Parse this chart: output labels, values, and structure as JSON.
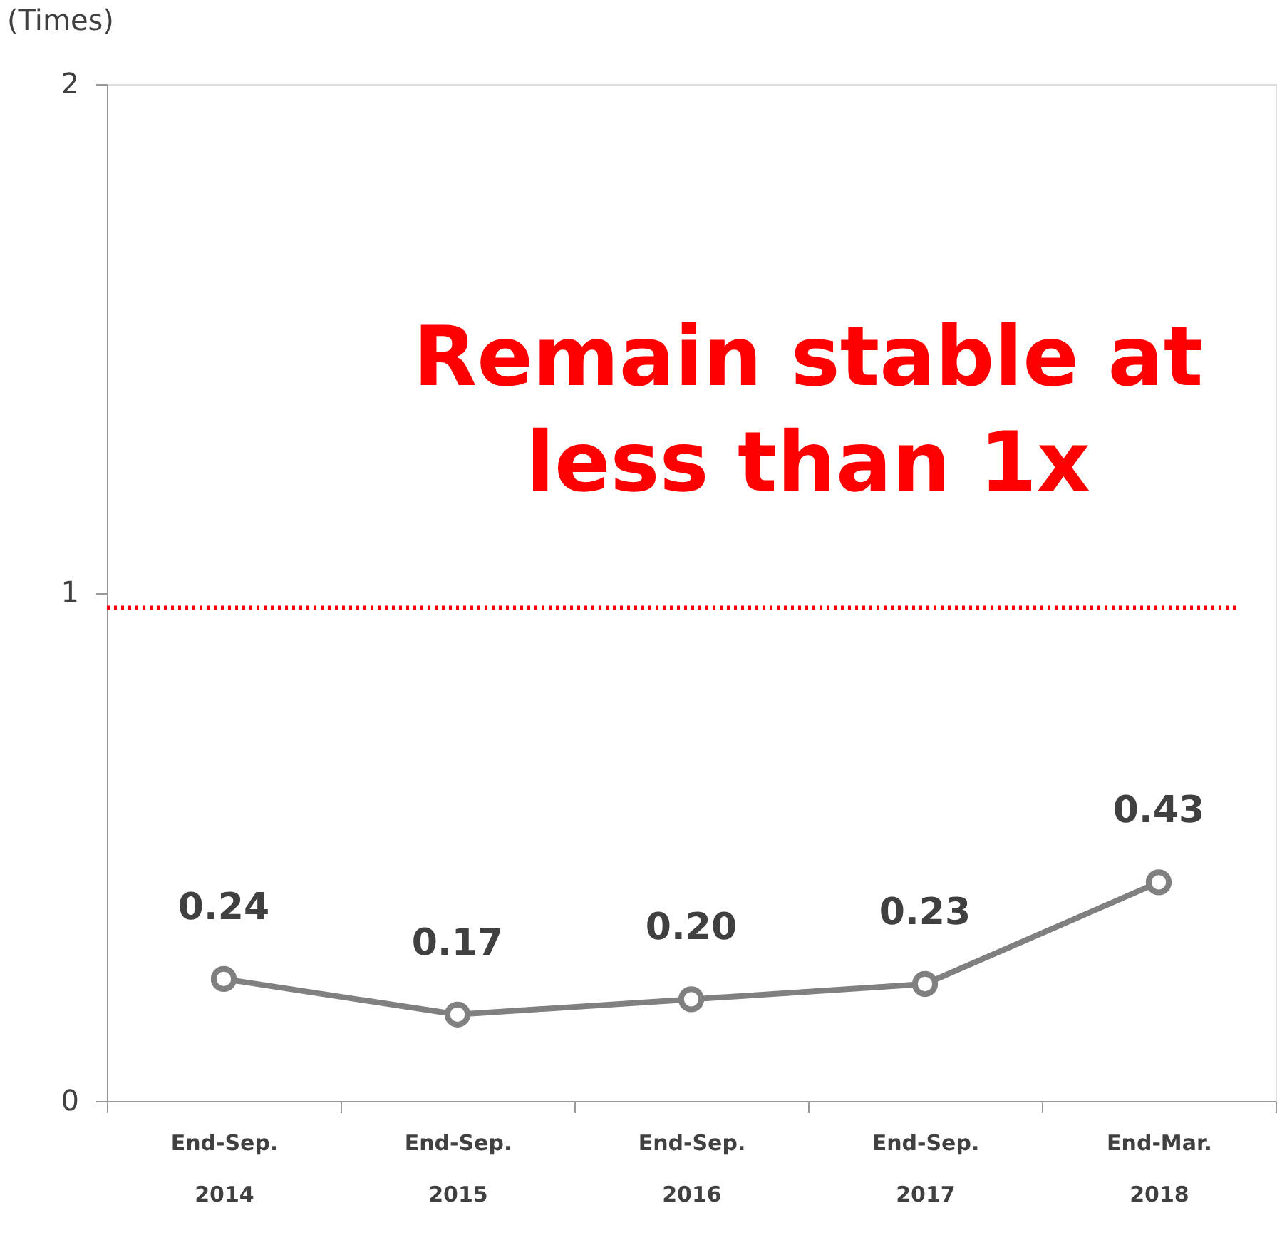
{
  "chart_data": {
    "type": "line",
    "ylabel": "(Times)",
    "categories": [
      "End-Sep. 2014",
      "End-Sep. 2015",
      "End-Sep. 2016",
      "End-Sep. 2017",
      "End-Mar. 2018"
    ],
    "series": [
      {
        "color": "#808080",
        "values": [
          0.24,
          0.17,
          0.2,
          0.23,
          0.43
        ]
      }
    ],
    "ylim": [
      0,
      2
    ],
    "yticks": [
      0,
      1,
      2
    ],
    "ref_lines": [
      {
        "axis": "y",
        "value": 0.97,
        "color": "#ff0000",
        "line_style": "dotted"
      }
    ],
    "annotations": [
      "Remain stable at less than 1x"
    ],
    "value_labels": [
      "0.24",
      "0.17",
      "0.20",
      "0.23",
      "0.43"
    ],
    "marker": "circle",
    "line_style": "solid",
    "grid": false
  }
}
